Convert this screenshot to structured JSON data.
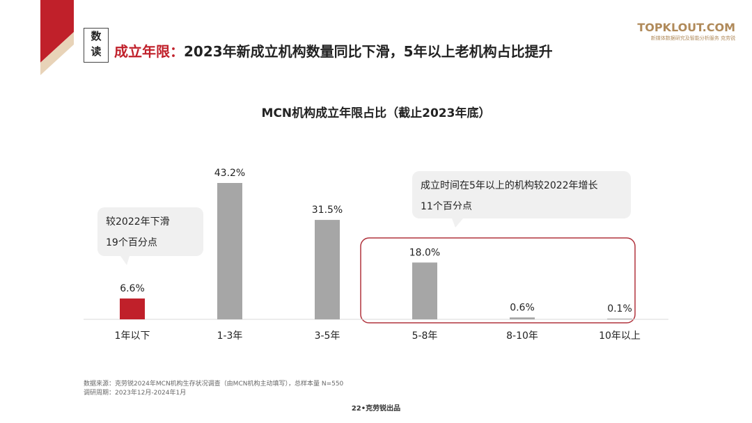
{
  "header": {
    "tag_line1": "数",
    "tag_line2": "读",
    "title_highlight": "成立年限：",
    "title_rest": "2023年新成立机构数量同比下滑，5年以上老机构占比提升"
  },
  "logo": {
    "main": "TOPKLOUT.COM",
    "sub": "新媒体数据研究及智能分析服务 克劳锐"
  },
  "chart_data": {
    "type": "bar",
    "title": "MCN机构成立年限占比（截止2023年底）",
    "categories": [
      "1年以下",
      "1-3年",
      "3-5年",
      "5-8年",
      "8-10年",
      "10年以上"
    ],
    "values": [
      6.6,
      43.2,
      31.5,
      18.0,
      0.6,
      0.1
    ],
    "value_labels": [
      "6.6%",
      "43.2%",
      "31.5%",
      "18.0%",
      "0.6%",
      "0.1%"
    ],
    "unit": "%",
    "highlight_category": "1年以下",
    "colors": {
      "highlight": "#c0202a",
      "default": "#a6a6a6",
      "box": "#b0323c"
    },
    "grid": false,
    "ylim": [
      0,
      50
    ]
  },
  "annotations": {
    "callout1_line1": "较2022年下滑",
    "callout1_line2": "19个百分点",
    "callout2_line1": "成立时间在5年以上的机构较2022年增长",
    "callout2_line2": "11个百分点"
  },
  "footer": {
    "source": "数据来源：克劳锐2024年MCN机构生存状况调查（由MCN机构主动填写），总样本量 N=550",
    "period": "调研周期：2023年12月-2024年1月",
    "page": "22•克劳锐出品"
  }
}
